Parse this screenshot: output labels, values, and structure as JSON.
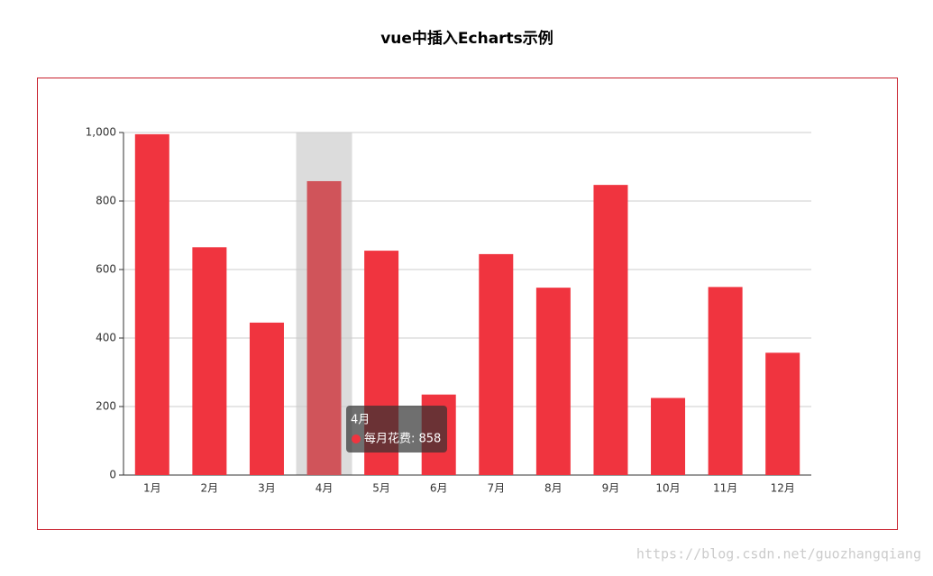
{
  "title": "vue中插入Echarts示例",
  "watermark": "https://blog.csdn.net/guozhangqiang",
  "chart_data": {
    "type": "bar",
    "categories": [
      "1月",
      "2月",
      "3月",
      "4月",
      "5月",
      "6月",
      "7月",
      "8月",
      "9月",
      "10月",
      "11月",
      "12月"
    ],
    "series": [
      {
        "name": "每月花费",
        "color": "#f0343f",
        "values": [
          995,
          665,
          445,
          858,
          655,
          235,
          645,
          547,
          847,
          225,
          549,
          357
        ]
      }
    ],
    "ylim": [
      0,
      1000
    ],
    "yticks": [
      0,
      200,
      400,
      600,
      800,
      {
        "value": 1000,
        "label": "1,000"
      }
    ],
    "grid": true,
    "tooltip": {
      "title": "4月",
      "text": "每月花费: 858"
    }
  }
}
